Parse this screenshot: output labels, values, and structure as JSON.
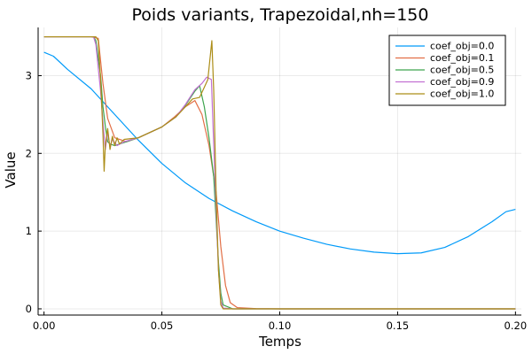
{
  "chart_data": {
    "type": "line",
    "title": "Poids variants, Trapezoidal,nh=150",
    "xlabel": "Temps",
    "ylabel": "Value",
    "xlim": [
      -0.0025,
      0.2025
    ],
    "ylim": [
      -0.08,
      3.62
    ],
    "grid": true,
    "legend_position": "top-right",
    "x_ticks": [
      {
        "value": 0.0,
        "label": "0.00"
      },
      {
        "value": 0.05,
        "label": "0.05"
      },
      {
        "value": 0.1,
        "label": "0.10"
      },
      {
        "value": 0.15,
        "label": "0.15"
      },
      {
        "value": 0.2,
        "label": "0.20"
      }
    ],
    "y_ticks": [
      {
        "value": 0,
        "label": "0"
      },
      {
        "value": 1,
        "label": "1"
      },
      {
        "value": 2,
        "label": "2"
      },
      {
        "value": 3,
        "label": "3"
      }
    ],
    "series": [
      {
        "name": "coef_obj=0.0",
        "color": "#009af9",
        "points": [
          [
            0,
            3.3
          ],
          [
            0.004,
            3.25
          ],
          [
            0.01,
            3.08
          ],
          [
            0.02,
            2.83
          ],
          [
            0.03,
            2.5
          ],
          [
            0.04,
            2.17
          ],
          [
            0.05,
            1.87
          ],
          [
            0.06,
            1.62
          ],
          [
            0.07,
            1.42
          ],
          [
            0.08,
            1.26
          ],
          [
            0.09,
            1.12
          ],
          [
            0.1,
            1.0
          ],
          [
            0.11,
            0.91
          ],
          [
            0.12,
            0.83
          ],
          [
            0.13,
            0.77
          ],
          [
            0.14,
            0.73
          ],
          [
            0.15,
            0.71
          ],
          [
            0.16,
            0.72
          ],
          [
            0.17,
            0.79
          ],
          [
            0.18,
            0.93
          ],
          [
            0.19,
            1.12
          ],
          [
            0.196,
            1.25
          ],
          [
            0.2,
            1.28
          ]
        ]
      },
      {
        "name": "coef_obj=0.1",
        "color": "#e26f46",
        "points": [
          [
            0,
            3.5
          ],
          [
            0.02,
            3.5
          ],
          [
            0.023,
            3.48
          ],
          [
            0.025,
            2.9
          ],
          [
            0.027,
            2.45
          ],
          [
            0.03,
            2.2
          ],
          [
            0.035,
            2.15
          ],
          [
            0.04,
            2.2
          ],
          [
            0.05,
            2.34
          ],
          [
            0.055,
            2.46
          ],
          [
            0.06,
            2.6
          ],
          [
            0.064,
            2.68
          ],
          [
            0.067,
            2.5
          ],
          [
            0.07,
            2.1
          ],
          [
            0.073,
            1.5
          ],
          [
            0.075,
            0.8
          ],
          [
            0.077,
            0.3
          ],
          [
            0.079,
            0.08
          ],
          [
            0.082,
            0.015
          ],
          [
            0.09,
            0.003
          ],
          [
            0.1,
            0.0
          ],
          [
            0.2,
            0.0
          ]
        ]
      },
      {
        "name": "coef_obj=0.5",
        "color": "#3da44d",
        "points": [
          [
            0,
            3.5
          ],
          [
            0.021,
            3.5
          ],
          [
            0.022,
            3.45
          ],
          [
            0.024,
            3.0
          ],
          [
            0.025,
            2.6
          ],
          [
            0.026,
            2.35
          ],
          [
            0.027,
            2.15
          ],
          [
            0.028,
            2.12
          ],
          [
            0.03,
            2.1
          ],
          [
            0.035,
            2.15
          ],
          [
            0.04,
            2.2
          ],
          [
            0.05,
            2.34
          ],
          [
            0.056,
            2.47
          ],
          [
            0.06,
            2.62
          ],
          [
            0.064,
            2.8
          ],
          [
            0.066,
            2.87
          ],
          [
            0.068,
            2.6
          ],
          [
            0.07,
            2.2
          ],
          [
            0.072,
            1.7
          ],
          [
            0.074,
            0.6
          ],
          [
            0.075,
            0.2
          ],
          [
            0.076,
            0.05
          ],
          [
            0.08,
            0.0
          ],
          [
            0.2,
            0.0
          ]
        ]
      },
      {
        "name": "coef_obj=0.9",
        "color": "#c271d2",
        "points": [
          [
            0,
            3.5
          ],
          [
            0.021,
            3.5
          ],
          [
            0.022,
            3.4
          ],
          [
            0.024,
            2.8
          ],
          [
            0.025,
            2.4
          ],
          [
            0.026,
            2.05
          ],
          [
            0.027,
            2.28
          ],
          [
            0.028,
            2.08
          ],
          [
            0.029,
            2.18
          ],
          [
            0.031,
            2.1
          ],
          [
            0.034,
            2.15
          ],
          [
            0.04,
            2.2
          ],
          [
            0.05,
            2.34
          ],
          [
            0.056,
            2.47
          ],
          [
            0.06,
            2.63
          ],
          [
            0.064,
            2.82
          ],
          [
            0.067,
            2.9
          ],
          [
            0.069,
            2.98
          ],
          [
            0.071,
            2.95
          ],
          [
            0.072,
            2.1
          ],
          [
            0.073,
            1.3
          ],
          [
            0.074,
            0.5
          ],
          [
            0.075,
            0.1
          ],
          [
            0.076,
            0.01
          ],
          [
            0.08,
            0.0
          ],
          [
            0.2,
            0.0
          ]
        ]
      },
      {
        "name": "coef_obj=1.0",
        "color": "#ac8d18",
        "points": [
          [
            0,
            3.5
          ],
          [
            0.022,
            3.5
          ],
          [
            0.023,
            3.45
          ],
          [
            0.024,
            2.95
          ],
          [
            0.025,
            2.25
          ],
          [
            0.0255,
            1.77
          ],
          [
            0.026,
            2.1
          ],
          [
            0.027,
            2.32
          ],
          [
            0.028,
            2.05
          ],
          [
            0.029,
            2.22
          ],
          [
            0.03,
            2.1
          ],
          [
            0.031,
            2.2
          ],
          [
            0.032,
            2.12
          ],
          [
            0.034,
            2.18
          ],
          [
            0.04,
            2.2
          ],
          [
            0.05,
            2.34
          ],
          [
            0.056,
            2.47
          ],
          [
            0.06,
            2.6
          ],
          [
            0.063,
            2.7
          ],
          [
            0.066,
            2.72
          ],
          [
            0.068,
            2.85
          ],
          [
            0.0695,
            2.95
          ],
          [
            0.0712,
            3.45
          ],
          [
            0.072,
            2.8
          ],
          [
            0.073,
            1.5
          ],
          [
            0.074,
            0.5
          ],
          [
            0.075,
            0.05
          ],
          [
            0.076,
            0.0
          ],
          [
            0.2,
            0.0
          ]
        ]
      }
    ]
  }
}
